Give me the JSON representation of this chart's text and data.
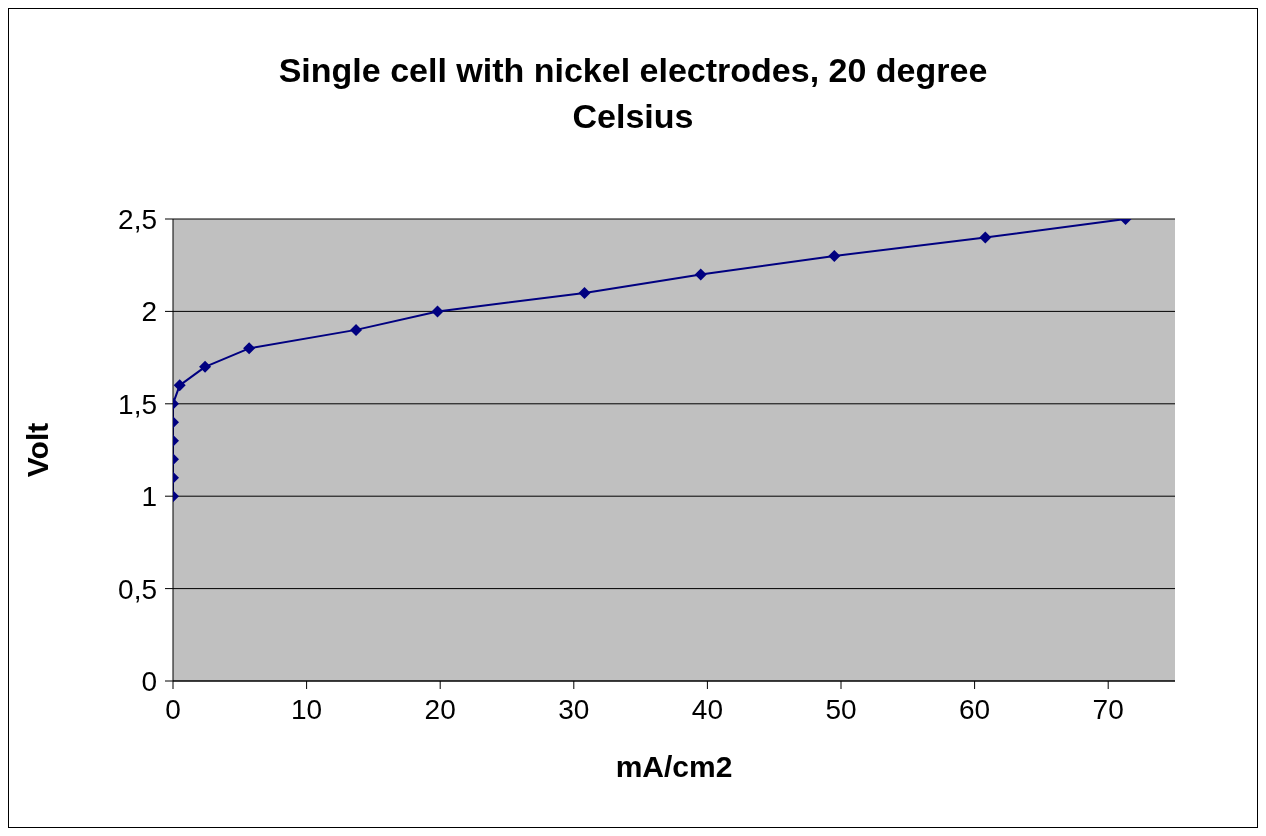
{
  "chart_data": {
    "type": "line",
    "title": "Single cell with nickel electrodes, 20 degree Celsius",
    "xlabel": "mA/cm2",
    "ylabel": "Volt",
    "x": [
      0,
      0,
      0,
      0,
      0,
      0,
      0.5,
      2.4,
      5.7,
      13.7,
      19.8,
      30.8,
      39.5,
      49.5,
      60.8,
      71.3
    ],
    "series": [
      {
        "color": "#000080",
        "values": [
          1,
          1.1,
          1.2,
          1.3,
          1.4,
          1.5,
          1.6,
          1.7,
          1.8,
          1.9,
          2,
          2.1,
          2.2,
          2.3,
          2.4,
          2.5
        ]
      }
    ],
    "xlim": [
      0,
      75
    ],
    "xticks": [
      0,
      10,
      20,
      30,
      40,
      50,
      60,
      70
    ],
    "ylim": [
      0,
      2.5
    ],
    "yticks": [
      0,
      {
        "value": 0.5,
        "label": "0,5"
      },
      1,
      {
        "value": 1.5,
        "label": "1,5"
      },
      2,
      {
        "value": 2.5,
        "label": "2,5"
      }
    ],
    "grid": "y",
    "marker": "diamond",
    "line_style": "solid"
  }
}
